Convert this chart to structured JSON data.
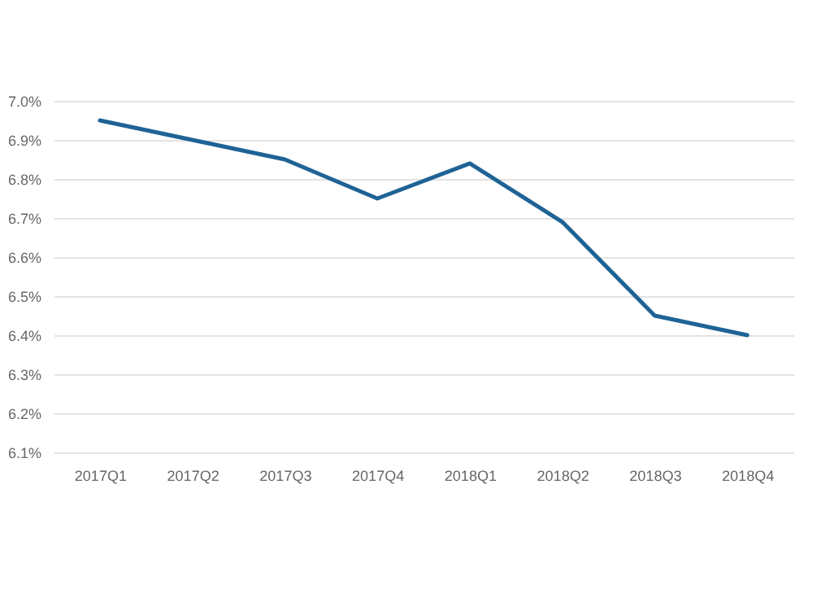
{
  "chart_data": {
    "type": "line",
    "categories": [
      "2017Q1",
      "2017Q2",
      "2017Q3",
      "2017Q4",
      "2018Q1",
      "2018Q2",
      "2018Q3",
      "2018Q4"
    ],
    "series": [
      {
        "color": "#1f6396",
        "values": [
          6.95,
          6.9,
          6.85,
          6.75,
          6.84,
          6.69,
          6.45,
          6.4
        ]
      }
    ],
    "ylim": [
      6.1,
      7.0
    ],
    "yticks": [
      {
        "value": 6.1,
        "label": "6.1%"
      },
      {
        "value": 6.2,
        "label": "6.2%"
      },
      {
        "value": 6.3,
        "label": "6.3%"
      },
      {
        "value": 6.4,
        "label": "6.4%"
      },
      {
        "value": 6.5,
        "label": "6.5%"
      },
      {
        "value": 6.6,
        "label": "6.6%"
      },
      {
        "value": 6.7,
        "label": "6.7%"
      },
      {
        "value": 6.8,
        "label": "6.8%"
      },
      {
        "value": 6.9,
        "label": "6.9%"
      },
      {
        "value": 7.0,
        "label": "7.0%"
      }
    ],
    "grid": "y",
    "marker": "none",
    "line_style": "solid"
  }
}
